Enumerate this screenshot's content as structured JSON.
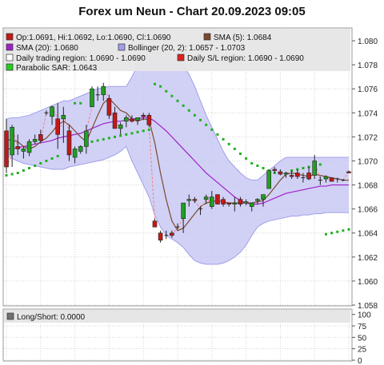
{
  "title": "Forex um Neun - Chart 20.09.2023 09:05",
  "colors": {
    "background": "#ffffff",
    "panel_border": "#9a9a9a",
    "grid": "#d2d2d2",
    "legend_bg": "#e6e6e6",
    "candle_up": "#20a020",
    "candle_down": "#c41818",
    "sma5": "#7a4a2a",
    "sma20": "#a020c8",
    "bollinger_fill": "#c9c9f4",
    "bollinger_line": "#9f9fe8",
    "daily_region": "#808080",
    "sl_region": "#e02020",
    "sar": "#20b020",
    "gap_line": "#f08080"
  },
  "legend": [
    {
      "label": "Op:1.0691, Hi:1.0692, Lo:1.0690, Cl:1.0690",
      "color": "#c41818"
    },
    {
      "label": "SMA (5): 1.0684",
      "color": "#7a4a2a"
    },
    {
      "label": "SMA (20): 1.0680",
      "color": "#a020c8"
    },
    {
      "label": "Bollinger (20, 2): 1.0657 - 1.0703",
      "color": "#9f9fe8"
    },
    {
      "label": "Daily trading region: 1.0690 - 1.0690",
      "color": "#ffffff"
    },
    {
      "label": "Daily S/L region: 1.0690 - 1.0690",
      "color": "#e02020"
    },
    {
      "label": "Parabolic SAR: 1.0643",
      "color": "#20d020"
    }
  ],
  "sub_legend": {
    "label": "Long/Short: 0.0000",
    "color": "#707070"
  },
  "chart_data": [
    {
      "type": "candlestick",
      "ylim": [
        1.058,
        1.081
      ],
      "y_ticks": [
        "1.058",
        "1.060",
        "1.062",
        "1.064",
        "1.066",
        "1.068",
        "1.070",
        "1.072",
        "1.074",
        "1.076",
        "1.078",
        "1.080"
      ],
      "ohlc": [
        [
          1.0725,
          1.0735,
          1.069,
          1.0695
        ],
        [
          1.0705,
          1.073,
          1.0695,
          1.0728
        ],
        [
          1.0712,
          1.0722,
          1.0705,
          1.071
        ],
        [
          1.0708,
          1.0712,
          1.0702,
          1.071
        ],
        [
          1.0707,
          1.0718,
          1.0704,
          1.0716
        ],
        [
          1.0716,
          1.0722,
          1.0714,
          1.0718
        ],
        [
          1.0722,
          1.0726,
          1.0715,
          1.0717
        ],
        [
          1.074,
          1.0742,
          1.0738,
          1.074
        ],
        [
          1.0737,
          1.0746,
          1.073,
          1.0745
        ],
        [
          1.0735,
          1.0748,
          1.071,
          1.0722
        ],
        [
          1.0735,
          1.0745,
          1.0715,
          1.0738
        ],
        [
          1.0725,
          1.073,
          1.07,
          1.0705
        ],
        [
          1.0703,
          1.0712,
          1.0698,
          1.071
        ],
        [
          1.0708,
          1.0713,
          1.0706,
          1.0712
        ],
        [
          1.0712,
          1.073,
          1.0706,
          1.0725
        ],
        [
          1.0745,
          1.0762,
          1.0745,
          1.076
        ],
        [
          1.0755,
          1.0762,
          1.075,
          1.0755
        ],
        [
          1.0755,
          1.0765,
          1.075,
          1.0762
        ],
        [
          1.0752,
          1.0755,
          1.0735,
          1.0738
        ],
        [
          1.074,
          1.0745,
          1.0727,
          1.0727
        ],
        [
          1.0727,
          1.0732,
          1.0722,
          1.073
        ],
        [
          1.0733,
          1.0738,
          1.0728,
          1.0736
        ],
        [
          1.0735,
          1.0738,
          1.0732,
          1.0733
        ],
        [
          1.0734,
          1.0736,
          1.073,
          1.0736
        ],
        [
          1.0738,
          1.074,
          1.0734,
          1.0737
        ],
        [
          1.0738,
          1.074,
          1.0728,
          1.073
        ],
        [
          1.065,
          1.0652,
          1.0645,
          1.0645
        ],
        [
          1.064,
          1.0642,
          1.0632,
          1.0634
        ],
        [
          1.0638,
          1.0642,
          1.0635,
          1.0638
        ],
        [
          1.064,
          1.0642,
          1.0636,
          1.0638
        ],
        [
          1.0645,
          1.0648,
          1.0643,
          1.0645
        ],
        [
          1.0652,
          1.0665,
          1.064,
          1.0665
        ],
        [
          1.0667,
          1.0672,
          1.0662,
          1.0668
        ],
        [
          1.0668,
          1.067,
          1.0665,
          1.0667
        ],
        [
          1.066,
          1.0662,
          1.0655,
          1.066
        ],
        [
          1.0668,
          1.0672,
          1.0664,
          1.067
        ],
        [
          1.0662,
          1.0675,
          1.066,
          1.067
        ],
        [
          1.0672,
          1.0672,
          1.0664,
          1.0664
        ],
        [
          1.0668,
          1.067,
          1.0662,
          1.0664
        ],
        [
          1.0665,
          1.0665,
          1.0662,
          1.0664
        ],
        [
          1.0664,
          1.067,
          1.0658,
          1.0665
        ],
        [
          1.0668,
          1.067,
          1.0662,
          1.0664
        ],
        [
          1.0665,
          1.0668,
          1.0663,
          1.0666
        ],
        [
          1.0662,
          1.0665,
          1.0658,
          1.0665
        ],
        [
          1.0667,
          1.0669,
          1.0664,
          1.0668
        ],
        [
          1.0668,
          1.0672,
          1.0662,
          1.0672
        ],
        [
          1.0677,
          1.0692,
          1.0677,
          1.0692
        ],
        [
          1.0693,
          1.0695,
          1.069,
          1.0692
        ],
        [
          1.0691,
          1.0693,
          1.0688,
          1.0689
        ],
        [
          1.0689,
          1.0691,
          1.0686,
          1.069
        ],
        [
          1.0688,
          1.0692,
          1.0685,
          1.0687
        ],
        [
          1.069,
          1.0693,
          1.0685,
          1.0687
        ],
        [
          1.0686,
          1.069,
          1.0682,
          1.0686
        ],
        [
          1.069,
          1.0695,
          1.0684,
          1.0685
        ],
        [
          1.0688,
          1.0705,
          1.0685,
          1.07
        ],
        [
          1.0684,
          1.0687,
          1.068,
          1.0684
        ],
        [
          1.0685,
          1.0688,
          1.0682,
          1.0687
        ],
        [
          1.0686,
          1.0686,
          1.0683,
          1.0683
        ],
        [
          1.0685,
          1.0686,
          1.0682,
          1.0685
        ],
        [
          1.0684,
          1.0685,
          1.0683,
          1.0684
        ],
        [
          1.0691,
          1.0692,
          1.069,
          1.069
        ]
      ],
      "sma5": [
        1.0718,
        1.0717,
        1.0716,
        1.0712,
        1.071,
        1.0712,
        1.0716,
        1.0719,
        1.0724,
        1.073,
        1.0733,
        1.073,
        1.0725,
        1.072,
        1.0716,
        1.0727,
        1.0738,
        1.0748,
        1.0752,
        1.0747,
        1.0742,
        1.074,
        1.0735,
        1.0733,
        1.0735,
        1.0734,
        1.0715,
        1.069,
        1.0668,
        1.065,
        1.0642,
        1.0644,
        1.065,
        1.0656,
        1.0662,
        1.0665,
        1.0666,
        1.0667,
        1.0666,
        1.0665,
        1.0665,
        1.0665,
        1.0665,
        1.0665,
        1.0666,
        1.0667,
        1.0672,
        1.0678,
        1.0684,
        1.0689,
        1.069,
        1.0689,
        1.0688,
        1.0687,
        1.0689,
        1.0688,
        1.0687,
        1.0686,
        1.0685,
        1.0684,
        1.0684
      ],
      "sma20": [
        1.071,
        1.071,
        1.0711,
        1.0712,
        1.0713,
        1.0714,
        1.0715,
        1.0716,
        1.0717,
        1.0719,
        1.072,
        1.0721,
        1.0722,
        1.0723,
        1.0725,
        1.0727,
        1.0729,
        1.0731,
        1.0732,
        1.0733,
        1.0733,
        1.0734,
        1.0735,
        1.0735,
        1.0736,
        1.0736,
        1.0733,
        1.0729,
        1.0725,
        1.072,
        1.0715,
        1.071,
        1.0705,
        1.07,
        1.0695,
        1.069,
        1.0686,
        1.0682,
        1.0678,
        1.0674,
        1.067,
        1.0667,
        1.0665,
        1.0664,
        1.0664,
        1.0665,
        1.0667,
        1.0669,
        1.0671,
        1.0673,
        1.0674,
        1.0675,
        1.0676,
        1.0677,
        1.0678,
        1.0679,
        1.0679,
        1.068,
        1.068,
        1.068,
        1.068
      ],
      "bollinger_upper": [
        1.0735,
        1.0736,
        1.0736,
        1.0737,
        1.0738,
        1.074,
        1.0742,
        1.0744,
        1.0746,
        1.0748,
        1.075,
        1.075,
        1.0752,
        1.0754,
        1.0756,
        1.0758,
        1.076,
        1.0761,
        1.0762,
        1.0762,
        1.0762,
        1.0762,
        1.077,
        1.078,
        1.0787,
        1.079,
        1.079,
        1.079,
        1.079,
        1.0788,
        1.0785,
        1.078,
        1.0772,
        1.0762,
        1.075,
        1.0738,
        1.0728,
        1.0718,
        1.0708,
        1.07,
        1.0695,
        1.069,
        1.0686,
        1.0684,
        1.0684,
        1.0688,
        1.0692,
        1.0696,
        1.07,
        1.0703,
        1.0703,
        1.0703,
        1.0703,
        1.0703,
        1.0703,
        1.0703,
        1.0703,
        1.0703,
        1.0703,
        1.0703,
        1.0703
      ],
      "bollinger_lower": [
        1.0705,
        1.0702,
        1.07,
        1.0698,
        1.0697,
        1.0696,
        1.0695,
        1.0694,
        1.0693,
        1.0693,
        1.0693,
        1.0695,
        1.0696,
        1.0697,
        1.0698,
        1.0699,
        1.07,
        1.0701,
        1.0703,
        1.0705,
        1.0708,
        1.0712,
        1.07,
        1.069,
        1.068,
        1.067,
        1.0655,
        1.0645,
        1.0638,
        1.0635,
        1.0632,
        1.0628,
        1.0622,
        1.0617,
        1.0615,
        1.0614,
        1.0614,
        1.0614,
        1.0615,
        1.0617,
        1.062,
        1.0624,
        1.063,
        1.0638,
        1.0645,
        1.0648,
        1.065,
        1.0651,
        1.0652,
        1.0653,
        1.0654,
        1.0654,
        1.0655,
        1.0655,
        1.0656,
        1.0656,
        1.0657,
        1.0657,
        1.0657,
        1.0657,
        1.0657
      ],
      "sar": [
        1.0688,
        1.0689,
        1.069,
        1.0692,
        1.0694,
        1.0696,
        1.0698,
        1.07,
        1.0702,
        1.0704,
        null,
        null,
        1.0748,
        1.0748,
        1.0715,
        1.0716,
        1.0717,
        1.0718,
        1.0719,
        1.072,
        1.0721,
        1.0722,
        1.0723,
        1.0724,
        1.0725,
        1.0726,
        1.0764,
        1.0762,
        1.0758,
        1.0754,
        1.075,
        1.0746,
        1.0742,
        1.0738,
        1.0734,
        1.073,
        1.0726,
        1.0722,
        1.0718,
        1.0714,
        1.071,
        1.0706,
        1.0702,
        1.0698,
        1.0696,
        1.0694,
        1.0692,
        1.069,
        null,
        null,
        1.0692,
        1.0693,
        1.0694,
        1.0695,
        1.0696,
        1.0697,
        1.0639,
        1.064,
        1.0641,
        1.0642,
        1.0643
      ]
    },
    {
      "type": "line",
      "name": "Long/Short",
      "ylim": [
        0,
        110
      ],
      "y_ticks": [
        "0",
        "25",
        "50",
        "75",
        "100"
      ],
      "values": []
    }
  ]
}
